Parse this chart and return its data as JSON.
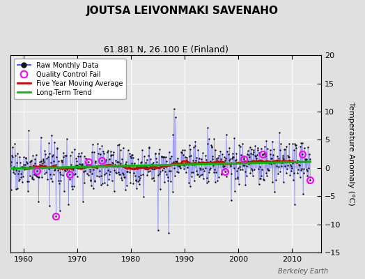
{
  "title": "JOUTSA LEIVONMAKI SAVENAHO",
  "subtitle": "61.881 N, 26.100 E (Finland)",
  "ylabel": "Temperature Anomaly (°C)",
  "credit": "Berkeley Earth",
  "ylim": [
    -15,
    20
  ],
  "yticks": [
    -15,
    -10,
    -5,
    0,
    5,
    10,
    15,
    20
  ],
  "xlim": [
    1957.5,
    2015.5
  ],
  "xticks": [
    1960,
    1970,
    1980,
    1990,
    2000,
    2010
  ],
  "bg_color": "#e0e0e0",
  "plot_bg_color": "#e8e8e8",
  "raw_line_color": "#5555ff",
  "raw_dot_color": "#111111",
  "moving_avg_color": "#dd0000",
  "trend_color": "#00bb00",
  "qc_fail_color": "#ff00ff",
  "seed": 17,
  "n_months": 672,
  "start_year": 1957.5
}
